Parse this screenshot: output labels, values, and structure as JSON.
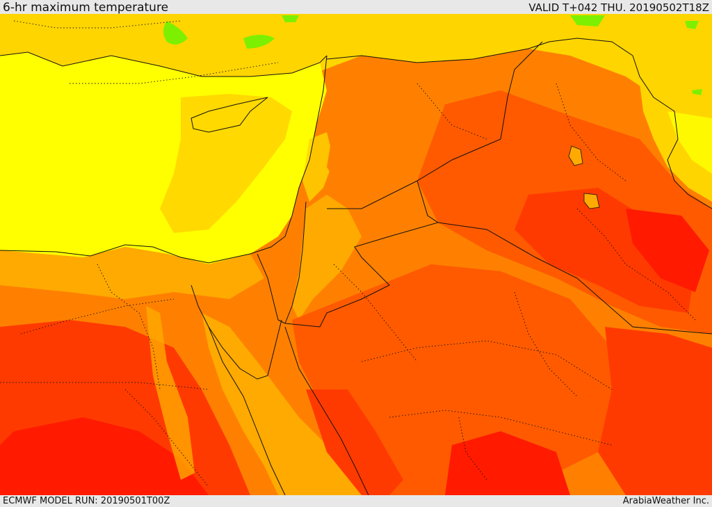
{
  "header": {
    "title": "6-hr maximum temperature",
    "valid": "VALID T+042 THU. 20190502T18Z"
  },
  "footer": {
    "model_run": "ECMWF MODEL RUN: 20190501T00Z",
    "credit": "ArabiaWeather Inc."
  },
  "colors": {
    "yellow": "#ffff00",
    "gold": "#ffd500",
    "light_orange": "#ffaa00",
    "orange": "#ff8000",
    "dark_orange": "#ff5a00",
    "red_orange": "#ff3a00",
    "red": "#ff1a00",
    "green": "#7cf000",
    "border": "#111111"
  }
}
